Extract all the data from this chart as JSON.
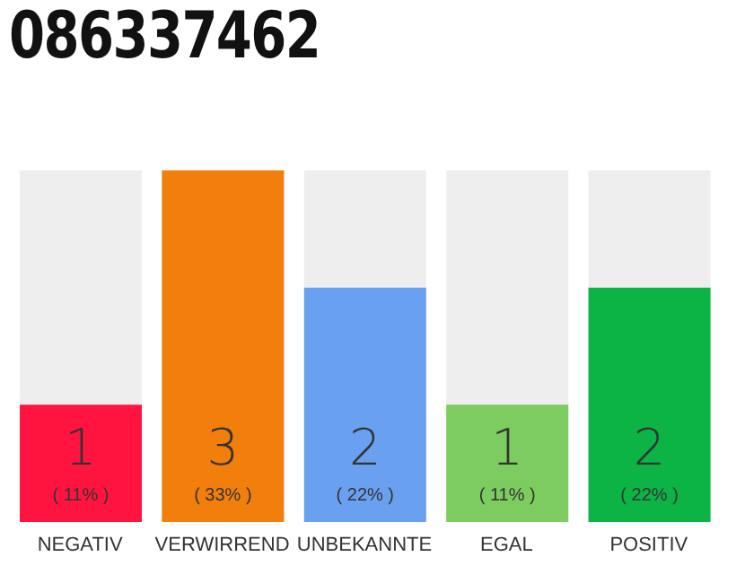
{
  "chart_data": {
    "type": "bar",
    "title": "086337462",
    "categories": [
      "NEGATIV",
      "VERWIRREND",
      "UNBEKANNTE",
      "EGAL",
      "POSITIV"
    ],
    "values": [
      1,
      3,
      2,
      1,
      2
    ],
    "colors": [
      "#ff1440",
      "#f27e0b",
      "#6aa0f0",
      "#7dcc5f",
      "#0cb445"
    ],
    "ylim": [
      0,
      3
    ],
    "tick_labels": "x",
    "data_labels": true,
    "grid": false,
    "legend": false,
    "annotations": [
      "( 11% )",
      "( 33% )",
      "( 22% )",
      "( 11% )",
      "( 22% )"
    ]
  }
}
